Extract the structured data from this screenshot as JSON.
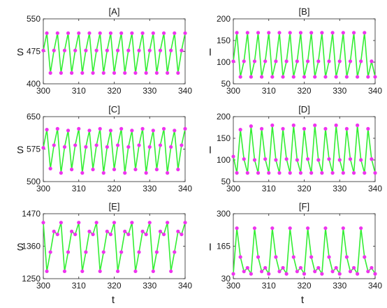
{
  "figure": {
    "x_axis_label": "t"
  },
  "chart_data": [
    {
      "type": "line",
      "title": "[A]",
      "ylabel": "S",
      "xlabel": "",
      "xlim": [
        300,
        340
      ],
      "ylim": [
        400,
        550
      ],
      "xticks": [
        300,
        310,
        320,
        330,
        340
      ],
      "yticks": [
        400,
        475,
        550
      ],
      "series": [
        {
          "color": "#33ee33",
          "marker_color": "#ee33ee",
          "x": [
            300,
            301,
            302,
            303,
            304,
            305,
            306,
            307,
            308,
            309,
            310,
            311,
            312,
            313,
            314,
            315,
            316,
            317,
            318,
            319,
            320,
            321,
            322,
            323,
            324,
            325,
            326,
            327,
            328,
            329,
            330,
            331,
            332,
            333,
            334,
            335,
            336,
            337,
            338,
            339,
            340
          ],
          "y": [
            477,
            517,
            425,
            477,
            517,
            425,
            477,
            517,
            425,
            477,
            517,
            425,
            477,
            517,
            425,
            477,
            517,
            425,
            477,
            517,
            425,
            477,
            517,
            425,
            477,
            517,
            425,
            477,
            517,
            425,
            477,
            517,
            425,
            477,
            517,
            425,
            477,
            517,
            425,
            477,
            517
          ]
        }
      ]
    },
    {
      "type": "line",
      "title": "[B]",
      "ylabel": "I",
      "xlabel": "",
      "xlim": [
        300,
        340
      ],
      "ylim": [
        50,
        200
      ],
      "xticks": [
        300,
        310,
        320,
        330,
        340
      ],
      "yticks": [
        50,
        100,
        150,
        200
      ],
      "series": [
        {
          "color": "#33ee33",
          "marker_color": "#ee33ee",
          "x": [
            300,
            301,
            302,
            303,
            304,
            305,
            306,
            307,
            308,
            309,
            310,
            311,
            312,
            313,
            314,
            315,
            316,
            317,
            318,
            319,
            320,
            321,
            322,
            323,
            324,
            325,
            326,
            327,
            328,
            329,
            330,
            331,
            332,
            333,
            334,
            335,
            336,
            337,
            338,
            339,
            340
          ],
          "y": [
            102,
            168,
            66,
            102,
            168,
            66,
            102,
            168,
            66,
            102,
            168,
            66,
            102,
            168,
            66,
            102,
            168,
            66,
            102,
            168,
            66,
            102,
            168,
            66,
            102,
            168,
            66,
            102,
            168,
            66,
            102,
            168,
            66,
            102,
            168,
            66,
            102,
            168,
            66,
            102,
            66
          ]
        }
      ]
    },
    {
      "type": "line",
      "title": "[C]",
      "ylabel": "S",
      "xlabel": "",
      "xlim": [
        300,
        340
      ],
      "ylim": [
        500,
        650
      ],
      "xticks": [
        300,
        310,
        320,
        330,
        340
      ],
      "yticks": [
        500,
        575,
        650
      ],
      "series": [
        {
          "color": "#33ee33",
          "marker_color": "#ee33ee",
          "x": [
            300,
            301,
            302,
            303,
            304,
            305,
            306,
            307,
            308,
            309,
            310,
            311,
            312,
            313,
            314,
            315,
            316,
            317,
            318,
            319,
            320,
            321,
            322,
            323,
            324,
            325,
            326,
            327,
            328,
            329,
            330,
            331,
            332,
            333,
            334,
            335,
            336,
            337,
            338,
            339,
            340
          ],
          "y": [
            578,
            620,
            530,
            584,
            622,
            520,
            580,
            618,
            528,
            584,
            622,
            520,
            580,
            618,
            528,
            584,
            622,
            520,
            580,
            618,
            528,
            584,
            622,
            520,
            580,
            618,
            528,
            584,
            622,
            520,
            580,
            618,
            528,
            584,
            622,
            520,
            580,
            618,
            528,
            584,
            622
          ]
        }
      ]
    },
    {
      "type": "line",
      "title": "[D]",
      "ylabel": "I",
      "xlabel": "",
      "xlim": [
        300,
        340
      ],
      "ylim": [
        50,
        200
      ],
      "xticks": [
        300,
        310,
        320,
        330,
        340
      ],
      "yticks": [
        50,
        100,
        150,
        200
      ],
      "series": [
        {
          "color": "#33ee33",
          "marker_color": "#ee33ee",
          "x": [
            300,
            301,
            302,
            303,
            304,
            305,
            306,
            307,
            308,
            309,
            310,
            311,
            312,
            313,
            314,
            315,
            316,
            317,
            318,
            319,
            320,
            321,
            322,
            323,
            324,
            325,
            326,
            327,
            328,
            329,
            330,
            331,
            332,
            333,
            334,
            335,
            336,
            337,
            338,
            339,
            340
          ],
          "y": [
            108,
            70,
            170,
            102,
            70,
            178,
            100,
            70,
            172,
            102,
            70,
            180,
            100,
            70,
            172,
            102,
            70,
            180,
            100,
            70,
            172,
            102,
            70,
            180,
            100,
            70,
            172,
            102,
            70,
            180,
            100,
            70,
            172,
            102,
            70,
            180,
            100,
            70,
            172,
            102,
            70
          ]
        }
      ]
    },
    {
      "type": "line",
      "title": "[E]",
      "ylabel": "S",
      "xlabel": "t",
      "xlim": [
        300,
        340
      ],
      "ylim": [
        1250,
        1470
      ],
      "xticks": [
        300,
        310,
        320,
        330,
        340
      ],
      "yticks": [
        1250,
        1360,
        1470
      ],
      "series": [
        {
          "color": "#33ee33",
          "marker_color": "#ee33ee",
          "x": [
            300,
            301,
            302,
            303,
            304,
            305,
            306,
            307,
            308,
            309,
            310,
            311,
            312,
            313,
            314,
            315,
            316,
            317,
            318,
            319,
            320,
            321,
            322,
            323,
            324,
            325,
            326,
            327,
            328,
            329,
            330,
            331,
            332,
            333,
            334,
            335,
            336,
            337,
            338,
            339,
            340
          ],
          "y": [
            1440,
            1275,
            1340,
            1410,
            1400,
            1440,
            1275,
            1340,
            1410,
            1400,
            1440,
            1275,
            1340,
            1410,
            1400,
            1440,
            1275,
            1340,
            1410,
            1400,
            1440,
            1275,
            1340,
            1410,
            1400,
            1440,
            1275,
            1340,
            1410,
            1400,
            1440,
            1275,
            1340,
            1410,
            1400,
            1440,
            1275,
            1340,
            1410,
            1400,
            1440
          ]
        }
      ]
    },
    {
      "type": "line",
      "title": "[F]",
      "ylabel": "I",
      "xlabel": "t",
      "xlim": [
        300,
        340
      ],
      "ylim": [
        30,
        300
      ],
      "xticks": [
        300,
        310,
        320,
        330,
        340
      ],
      "yticks": [
        30,
        165,
        300
      ],
      "series": [
        {
          "color": "#33ee33",
          "marker_color": "#ee33ee",
          "x": [
            300,
            301,
            302,
            303,
            304,
            305,
            306,
            307,
            308,
            309,
            310,
            311,
            312,
            313,
            314,
            315,
            316,
            317,
            318,
            319,
            320,
            321,
            322,
            323,
            324,
            325,
            326,
            327,
            328,
            329,
            330,
            331,
            332,
            333,
            334,
            335,
            336,
            337,
            338,
            339,
            340
          ],
          "y": [
            50,
            240,
            120,
            60,
            75,
            50,
            240,
            120,
            60,
            75,
            50,
            240,
            120,
            60,
            75,
            50,
            240,
            120,
            60,
            75,
            50,
            240,
            120,
            60,
            75,
            50,
            240,
            120,
            60,
            75,
            50,
            240,
            120,
            60,
            75,
            50,
            240,
            120,
            60,
            75,
            50
          ]
        }
      ]
    }
  ]
}
